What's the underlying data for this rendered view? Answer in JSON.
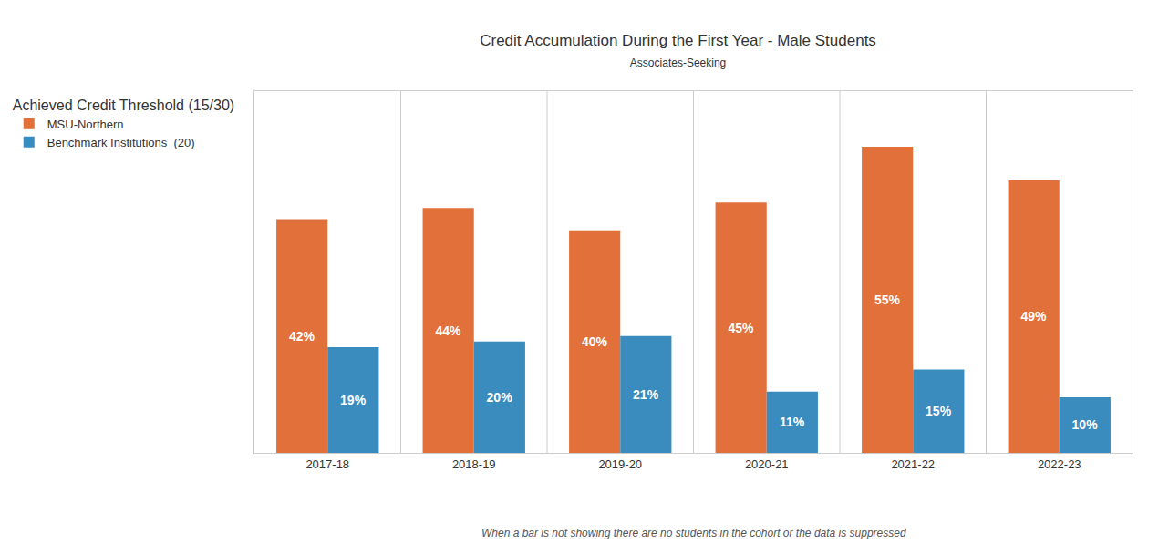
{
  "chart_data": {
    "type": "bar",
    "title": "Credit Accumulation During the First Year - Male Students",
    "subtitle": "Associates-Seeking",
    "legend_title": "Achieved Credit Threshold (15/30)",
    "annotations": [
      "When a bar is not showing there are no students in the cohort or the data is suppressed"
    ],
    "categories": [
      "2017-18",
      "2018-19",
      "2019-20",
      "2020-21",
      "2021-22",
      "2022-23"
    ],
    "series": [
      {
        "name": "MSU-Northern",
        "color": "#E2703A",
        "values": [
          42,
          44,
          40,
          45,
          55,
          49
        ],
        "value_labels": [
          "42%",
          "44%",
          "40%",
          "45%",
          "55%",
          "49%"
        ]
      },
      {
        "name": "Benchmark Institutions  (20)",
        "color": "#3A8BBE",
        "values": [
          19,
          20,
          21,
          11,
          15,
          10
        ],
        "value_labels": [
          "19%",
          "20%",
          "21%",
          "11%",
          "15%",
          "10%"
        ]
      }
    ],
    "ylim": [
      0,
      65
    ],
    "grid": false,
    "legend": "upper left",
    "data_labels": true,
    "tick_labels": "x"
  }
}
